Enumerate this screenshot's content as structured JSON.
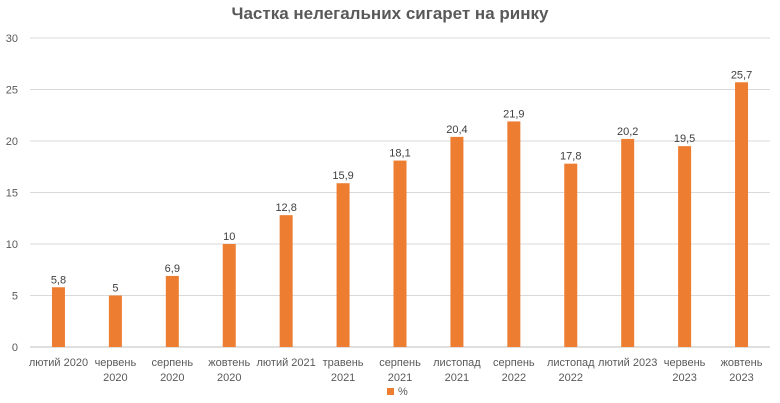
{
  "chart_data": {
    "type": "bar",
    "title": "Частка нелегальних сигарет на ринку",
    "xlabel": "",
    "ylabel": "",
    "ylim": [
      0,
      30
    ],
    "yticks": [
      "0",
      "5",
      "10",
      "15",
      "20",
      "25",
      "30"
    ],
    "grid": true,
    "legend_position": "bottom",
    "bar_color": "#ED7D31",
    "categories": [
      [
        "лютий 2020"
      ],
      [
        "червень",
        "2020"
      ],
      [
        "серпень",
        "2020"
      ],
      [
        "жовтень",
        "2020"
      ],
      [
        "лютий 2021"
      ],
      [
        "травень",
        "2021"
      ],
      [
        "серпень",
        "2021"
      ],
      [
        "листопад",
        "2021"
      ],
      [
        "серпень",
        "2022"
      ],
      [
        "листопад",
        "2022"
      ],
      [
        "лютий 2023"
      ],
      [
        "червень",
        "2023"
      ],
      [
        "жовтень",
        "2023"
      ]
    ],
    "series": [
      {
        "name": "%",
        "values": [
          5.8,
          5,
          6.9,
          10,
          12.8,
          15.9,
          18.1,
          20.4,
          21.9,
          17.8,
          20.2,
          19.5,
          25.7
        ],
        "labels": [
          "5,8",
          "5",
          "6,9",
          "10",
          "12,8",
          "15,9",
          "18,1",
          "20,4",
          "21,9",
          "17,8",
          "20,2",
          "19,5",
          "25,7"
        ]
      }
    ]
  }
}
